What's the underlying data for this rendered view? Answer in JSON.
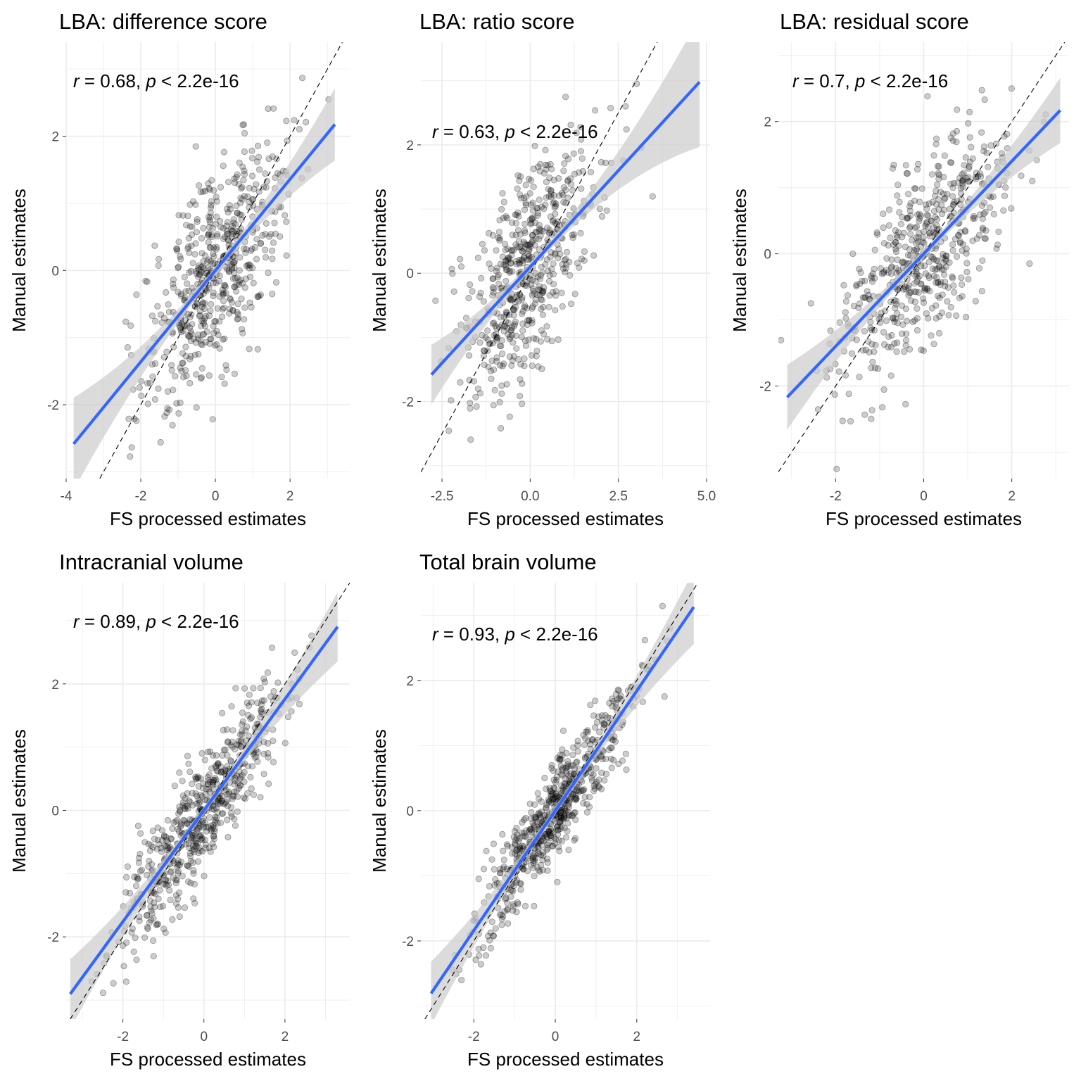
{
  "chart_data": [
    {
      "type": "scatter",
      "title": "LBA: difference score",
      "xlabel": "FS processed estimates",
      "ylabel": "Manual estimates",
      "xlim": [
        -4.0,
        3.6
      ],
      "ylim": [
        -3.1,
        3.4
      ],
      "xticks": [
        -4,
        -2,
        0,
        2
      ],
      "xtick_labels": [
        "-4",
        "-2",
        "0",
        "2"
      ],
      "yticks": [
        -2,
        0,
        2
      ],
      "ytick_labels": [
        "-2",
        "0",
        "2"
      ],
      "annotation": {
        "r_symbol": "r",
        "r_text": " = 0.68, ",
        "p_symbol": "p",
        "p_text": " < 2.2e-16"
      },
      "n_points": 560,
      "correlation": 0.68,
      "x_sd": 0.95,
      "regression": {
        "slope": 0.68,
        "intercept": 0.0,
        "x_range": [
          -3.8,
          3.2
        ]
      },
      "identity_line": true,
      "point_color": "#000000",
      "point_opacity": 0.2,
      "line_color": "#3366ff",
      "ribbon_color": "#cccccc",
      "grid": true
    },
    {
      "type": "scatter",
      "title": "LBA: ratio score",
      "xlabel": "FS processed estimates",
      "ylabel": "Manual estimates",
      "xlim": [
        -3.1,
        5.1
      ],
      "ylim": [
        -3.2,
        3.6
      ],
      "xticks": [
        -2.5,
        0.0,
        2.5,
        5.0
      ],
      "xtick_labels": [
        "-2.5",
        "0.0",
        "2.5",
        "5.0"
      ],
      "yticks": [
        -2,
        0,
        2
      ],
      "ytick_labels": [
        "-2",
        "0",
        "2"
      ],
      "annotation": {
        "r_symbol": "r",
        "r_text": " = 0.63, ",
        "p_symbol": "p",
        "p_text": " < 2.2e-16"
      },
      "n_points": 560,
      "correlation": 0.63,
      "x_sd": 0.95,
      "regression": {
        "slope": 0.6,
        "intercept": 0.1,
        "x_range": [
          -2.8,
          4.8
        ]
      },
      "identity_line": true,
      "point_color": "#000000",
      "point_opacity": 0.2,
      "line_color": "#3366ff",
      "ribbon_color": "#cccccc",
      "grid": true
    },
    {
      "type": "scatter",
      "title": "LBA: residual score",
      "xlabel": "FS processed estimates",
      "ylabel": "Manual estimates",
      "xlim": [
        -3.3,
        3.3
      ],
      "ylim": [
        -3.4,
        3.2
      ],
      "xticks": [
        -2,
        0,
        2
      ],
      "xtick_labels": [
        "-2",
        "0",
        "2"
      ],
      "yticks": [
        -2,
        0,
        2
      ],
      "ytick_labels": [
        "-2",
        "0",
        "2"
      ],
      "annotation": {
        "r_symbol": "r",
        "r_text": " = 0.7, ",
        "p_symbol": "p",
        "p_text": " < 2.2e-16"
      },
      "n_points": 560,
      "correlation": 0.7,
      "x_sd": 0.95,
      "regression": {
        "slope": 0.7,
        "intercept": 0.0,
        "x_range": [
          -3.1,
          3.1
        ]
      },
      "identity_line": true,
      "point_color": "#000000",
      "point_opacity": 0.2,
      "line_color": "#3366ff",
      "ribbon_color": "#cccccc",
      "grid": true
    },
    {
      "type": "scatter",
      "title": "Intracranial volume",
      "xlabel": "FS processed estimates",
      "ylabel": "Manual estimates",
      "xlim": [
        -3.4,
        3.6
      ],
      "ylim": [
        -3.3,
        3.6
      ],
      "xticks": [
        -2,
        0,
        2
      ],
      "xtick_labels": [
        "-2",
        "0",
        "2"
      ],
      "yticks": [
        -2,
        0,
        2
      ],
      "ytick_labels": [
        "-2",
        "0",
        "2"
      ],
      "annotation": {
        "r_symbol": "r",
        "r_text": " = 0.89, ",
        "p_symbol": "p",
        "p_text": " < 2.2e-16"
      },
      "n_points": 620,
      "correlation": 0.89,
      "x_sd": 0.95,
      "regression": {
        "slope": 0.88,
        "intercept": 0.0,
        "x_range": [
          -3.3,
          3.3
        ]
      },
      "identity_line": true,
      "point_color": "#000000",
      "point_opacity": 0.2,
      "line_color": "#3366ff",
      "ribbon_color": "#cccccc",
      "grid": true
    },
    {
      "type": "scatter",
      "title": "Total brain volume",
      "xlabel": "FS processed estimates",
      "ylabel": "Manual estimates",
      "xlim": [
        -3.3,
        3.8
      ],
      "ylim": [
        -3.2,
        3.5
      ],
      "xticks": [
        -2,
        0,
        2
      ],
      "xtick_labels": [
        "-2",
        "0",
        "2"
      ],
      "yticks": [
        -2,
        0,
        2
      ],
      "ytick_labels": [
        "-2",
        "0",
        "2"
      ],
      "annotation": {
        "r_symbol": "r",
        "r_text": " = 0.93, ",
        "p_symbol": "p",
        "p_text": " < 2.2e-16"
      },
      "n_points": 640,
      "correlation": 0.93,
      "x_sd": 0.95,
      "regression": {
        "slope": 0.92,
        "intercept": 0.0,
        "x_range": [
          -3.05,
          3.4
        ]
      },
      "identity_line": true,
      "point_color": "#000000",
      "point_opacity": 0.2,
      "line_color": "#3366ff",
      "ribbon_color": "#cccccc",
      "grid": true
    }
  ]
}
